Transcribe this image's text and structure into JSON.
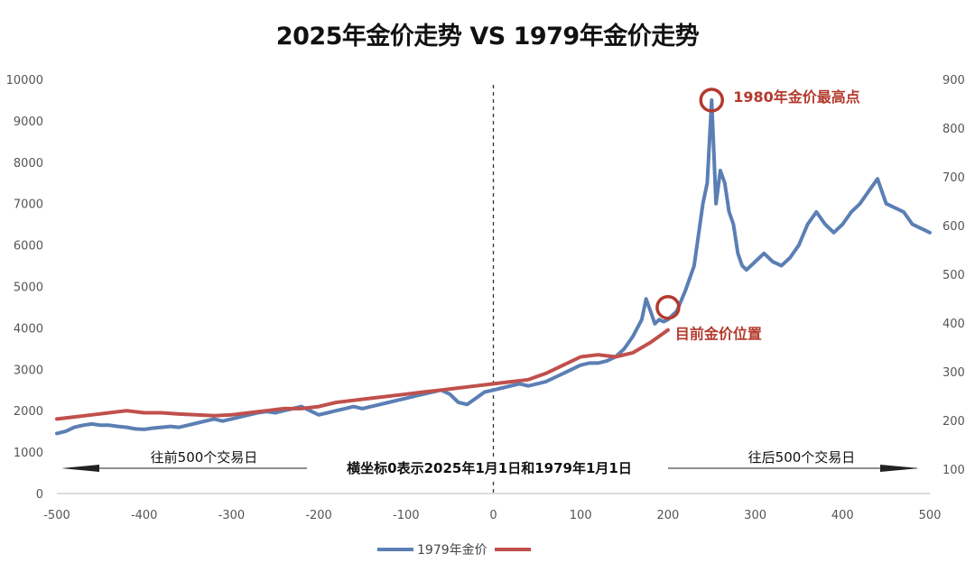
{
  "chart_data": {
    "type": "line",
    "title": "2025年金价走势 VS 1979年金价走势",
    "x_ticks": [
      -500,
      -400,
      -300,
      -200,
      -100,
      0,
      100,
      200,
      300,
      400,
      500
    ],
    "y_left_ticks": [
      0,
      1000,
      2000,
      3000,
      4000,
      5000,
      6000,
      7000,
      8000,
      9000,
      10000
    ],
    "y_right_ticks": [
      100,
      200,
      300,
      400,
      500,
      600,
      700,
      800,
      900
    ],
    "xlim": [
      -500,
      500
    ],
    "ylim_left": [
      0,
      10000
    ],
    "ylim_right": [
      50,
      900
    ],
    "grid": false,
    "legend_position": "bottom",
    "series": [
      {
        "name": "1979年金价",
        "axis": "left",
        "color": "#5b7fb4",
        "x": [
          -500,
          -490,
          -480,
          -470,
          -460,
          -450,
          -440,
          -430,
          -420,
          -410,
          -400,
          -390,
          -380,
          -370,
          -360,
          -350,
          -340,
          -330,
          -320,
          -310,
          -300,
          -290,
          -280,
          -270,
          -260,
          -250,
          -240,
          -230,
          -220,
          -210,
          -200,
          -190,
          -180,
          -170,
          -160,
          -150,
          -140,
          -130,
          -120,
          -110,
          -100,
          -90,
          -80,
          -70,
          -60,
          -50,
          -40,
          -30,
          -20,
          -10,
          0,
          10,
          20,
          30,
          40,
          50,
          60,
          70,
          80,
          90,
          100,
          110,
          120,
          130,
          140,
          150,
          160,
          170,
          175,
          180,
          185,
          190,
          195,
          200,
          210,
          220,
          230,
          240,
          245,
          250,
          255,
          260,
          265,
          270,
          275,
          280,
          285,
          290,
          300,
          310,
          320,
          330,
          340,
          350,
          360,
          370,
          380,
          390,
          400,
          410,
          420,
          430,
          440,
          450,
          460,
          470,
          480,
          490,
          500
        ],
        "values": [
          1450,
          1500,
          1600,
          1650,
          1680,
          1650,
          1650,
          1620,
          1600,
          1560,
          1550,
          1580,
          1600,
          1620,
          1600,
          1650,
          1700,
          1750,
          1800,
          1750,
          1800,
          1850,
          1900,
          1950,
          1980,
          1950,
          2000,
          2050,
          2100,
          2000,
          1900,
          1950,
          2000,
          2050,
          2100,
          2050,
          2100,
          2150,
          2200,
          2250,
          2300,
          2350,
          2400,
          2450,
          2500,
          2400,
          2200,
          2150,
          2300,
          2450,
          2500,
          2550,
          2600,
          2650,
          2600,
          2650,
          2700,
          2800,
          2900,
          3000,
          3100,
          3150,
          3150,
          3200,
          3300,
          3500,
          3800,
          4200,
          4700,
          4400,
          4100,
          4200,
          4150,
          4200,
          4400,
          4900,
          5500,
          7000,
          7500,
          9500,
          7000,
          7800,
          7500,
          6800,
          6500,
          5800,
          5500,
          5400,
          5600,
          5800,
          5600,
          5500,
          5700,
          6000,
          6500,
          6800,
          6500,
          6300,
          6500,
          6800,
          7000,
          7300,
          7600,
          7000,
          6900,
          6800,
          6500,
          6400,
          6300
        ]
      },
      {
        "name": "",
        "axis": "left",
        "color": "#c0504d",
        "x": [
          -500,
          -480,
          -460,
          -440,
          -420,
          -400,
          -380,
          -360,
          -340,
          -320,
          -300,
          -280,
          -260,
          -240,
          -220,
          -200,
          -180,
          -160,
          -140,
          -120,
          -100,
          -80,
          -60,
          -40,
          -20,
          0,
          20,
          40,
          60,
          80,
          100,
          120,
          140,
          160,
          180,
          200
        ],
        "values": [
          1800,
          1850,
          1900,
          1950,
          2000,
          1950,
          1950,
          1920,
          1900,
          1880,
          1900,
          1950,
          2000,
          2050,
          2050,
          2100,
          2200,
          2250,
          2300,
          2350,
          2400,
          2450,
          2500,
          2550,
          2600,
          2650,
          2700,
          2750,
          2900,
          3100,
          3300,
          3350,
          3300,
          3400,
          3650,
          3950
        ]
      }
    ],
    "annotations": {
      "peak_label": "1980年金价最高点",
      "current_label": "目前金价位置",
      "center_label": "横坐标0表示2025年1月1日和1979年1月1日",
      "left_label": "往前500个交易日",
      "right_label": "往后500个交易日"
    },
    "legend": [
      "1979年金价",
      ""
    ]
  }
}
